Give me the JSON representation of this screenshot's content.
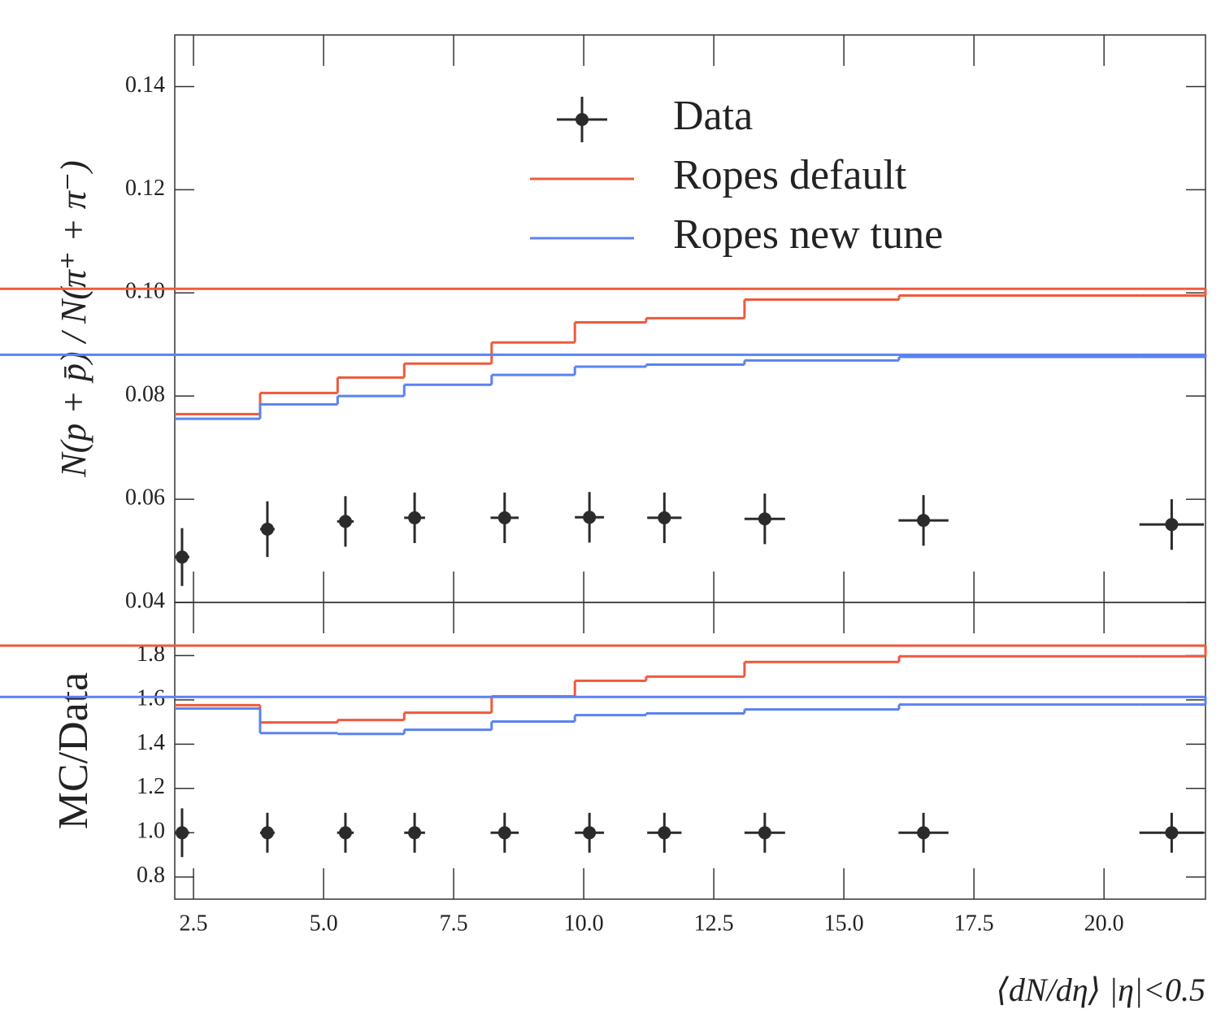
{
  "chart_data": [
    {
      "type": "step",
      "ylabel": "N(p + p̄) / N(π⁺ + π⁻)",
      "xlim": [
        2.14,
        21.95
      ],
      "ylim": [
        0.04,
        0.15
      ],
      "yticks": [
        0.04,
        0.06,
        0.08,
        {
          "value": 0.1,
          "label": "0.10"
        },
        0.12,
        0.14
      ],
      "bins": [
        2.14,
        3.78,
        5.27,
        6.55,
        8.23,
        9.83,
        11.2,
        13.09,
        16.06,
        20.69,
        21.95
      ],
      "series": [
        {
          "name": "Ropes default",
          "color": "#ee5a3c",
          "values": [
            0.0765,
            0.0806,
            0.0836,
            0.0863,
            0.0904,
            0.0943,
            0.0951,
            0.0987,
            0.0995,
            0.0995,
            0.1008
          ]
        },
        {
          "name": "Ropes new tune",
          "color": "#5b82f0",
          "values": [
            0.0756,
            0.0784,
            0.08,
            0.0822,
            0.0841,
            0.0857,
            0.0861,
            0.0869,
            0.0876,
            0.0876,
            0.088
          ]
        }
      ],
      "points": {
        "name": "Data",
        "color": "#2b2b2b",
        "x": [
          2.28,
          3.92,
          5.42,
          6.75,
          8.48,
          10.11,
          11.55,
          13.48,
          16.53,
          21.3
        ],
        "xerr": [
          0.14,
          0.14,
          0.16,
          0.2,
          0.27,
          0.28,
          0.33,
          0.39,
          0.48,
          0.62
        ],
        "values": [
          0.0488,
          0.0542,
          0.0557,
          0.0564,
          0.0564,
          0.0565,
          0.0564,
          0.0562,
          0.0559,
          0.0551
        ],
        "yerr": [
          0.0056,
          0.0054,
          0.0049,
          0.0049,
          0.0049,
          0.0049,
          0.0049,
          0.0049,
          0.0049,
          0.0049
        ]
      }
    },
    {
      "type": "step",
      "ylabel": "MC/Data",
      "xlabel": "⟨dN/dη⟩ |η|<0.5",
      "xlim": [
        2.14,
        21.95
      ],
      "ylim": [
        0.7,
        2.04
      ],
      "xticks": [
        2.5,
        {
          "value": 5,
          "label": "5.0"
        },
        7.5,
        {
          "value": 10,
          "label": "10.0"
        },
        12.5,
        {
          "value": 15,
          "label": "15.0"
        },
        17.5,
        {
          "value": 20,
          "label": "20.0"
        }
      ],
      "yticks": [
        0.8,
        {
          "value": 1,
          "label": "1.0"
        },
        1.2,
        1.4,
        1.6,
        1.8
      ],
      "bins": [
        2.14,
        3.78,
        5.27,
        6.55,
        8.23,
        9.83,
        11.2,
        13.09,
        16.06,
        20.69,
        21.95
      ],
      "series": [
        {
          "name": "Ropes default",
          "color": "#ee5a3c",
          "values": [
            1.576,
            1.498,
            1.509,
            1.542,
            1.616,
            1.686,
            1.705,
            1.771,
            1.797,
            1.797,
            1.845
          ]
        },
        {
          "name": "Ropes new tune",
          "color": "#5b82f0",
          "values": [
            1.561,
            1.45,
            1.446,
            1.465,
            1.502,
            1.531,
            1.539,
            1.557,
            1.579,
            1.579,
            1.613
          ]
        }
      ],
      "points": {
        "name": "Data",
        "color": "#2b2b2b",
        "x": [
          2.28,
          3.92,
          5.42,
          6.75,
          8.48,
          10.11,
          11.55,
          13.48,
          16.53,
          21.3
        ],
        "xerr": [
          0.14,
          0.14,
          0.16,
          0.2,
          0.27,
          0.28,
          0.33,
          0.39,
          0.48,
          0.62
        ],
        "values": [
          1,
          1,
          1,
          1,
          1,
          1,
          1,
          1,
          1,
          1
        ],
        "yerr": [
          0.11,
          0.09,
          0.09,
          0.09,
          0.09,
          0.09,
          0.09,
          0.09,
          0.09,
          0.09
        ]
      }
    }
  ]
}
